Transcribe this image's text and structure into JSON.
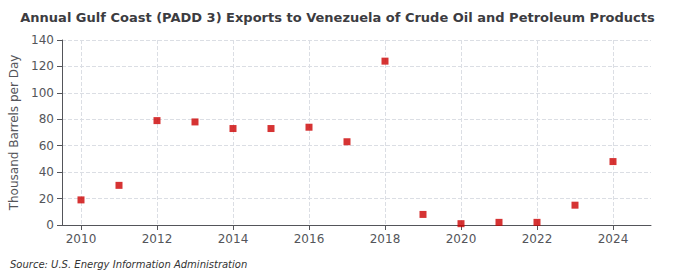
{
  "chart_data": {
    "type": "scatter",
    "title": "Annual Gulf Coast (PADD 3) Exports to Venezuela of Crude Oil and Petroleum Products",
    "ylabel": "Thousand Barrels per Day",
    "annotation": "Source: U.S. Energy Information Administration",
    "x": [
      2010,
      2011,
      2012,
      2013,
      2014,
      2015,
      2016,
      2017,
      2018,
      2019,
      2020,
      2021,
      2022,
      2023,
      2024
    ],
    "values": [
      19,
      30,
      79,
      78,
      73,
      73,
      74,
      63,
      124,
      8,
      1,
      2,
      2,
      15,
      48
    ],
    "color": "#cc0000",
    "marker": "square",
    "xlim": [
      2009.5,
      2025.0
    ],
    "ylim": [
      0,
      140
    ],
    "xticks": [
      2010,
      2012,
      2014,
      2016,
      2018,
      2020,
      2022,
      2024
    ],
    "yticks": [
      0,
      20,
      40,
      60,
      80,
      100,
      120,
      140
    ],
    "grid": true
  }
}
